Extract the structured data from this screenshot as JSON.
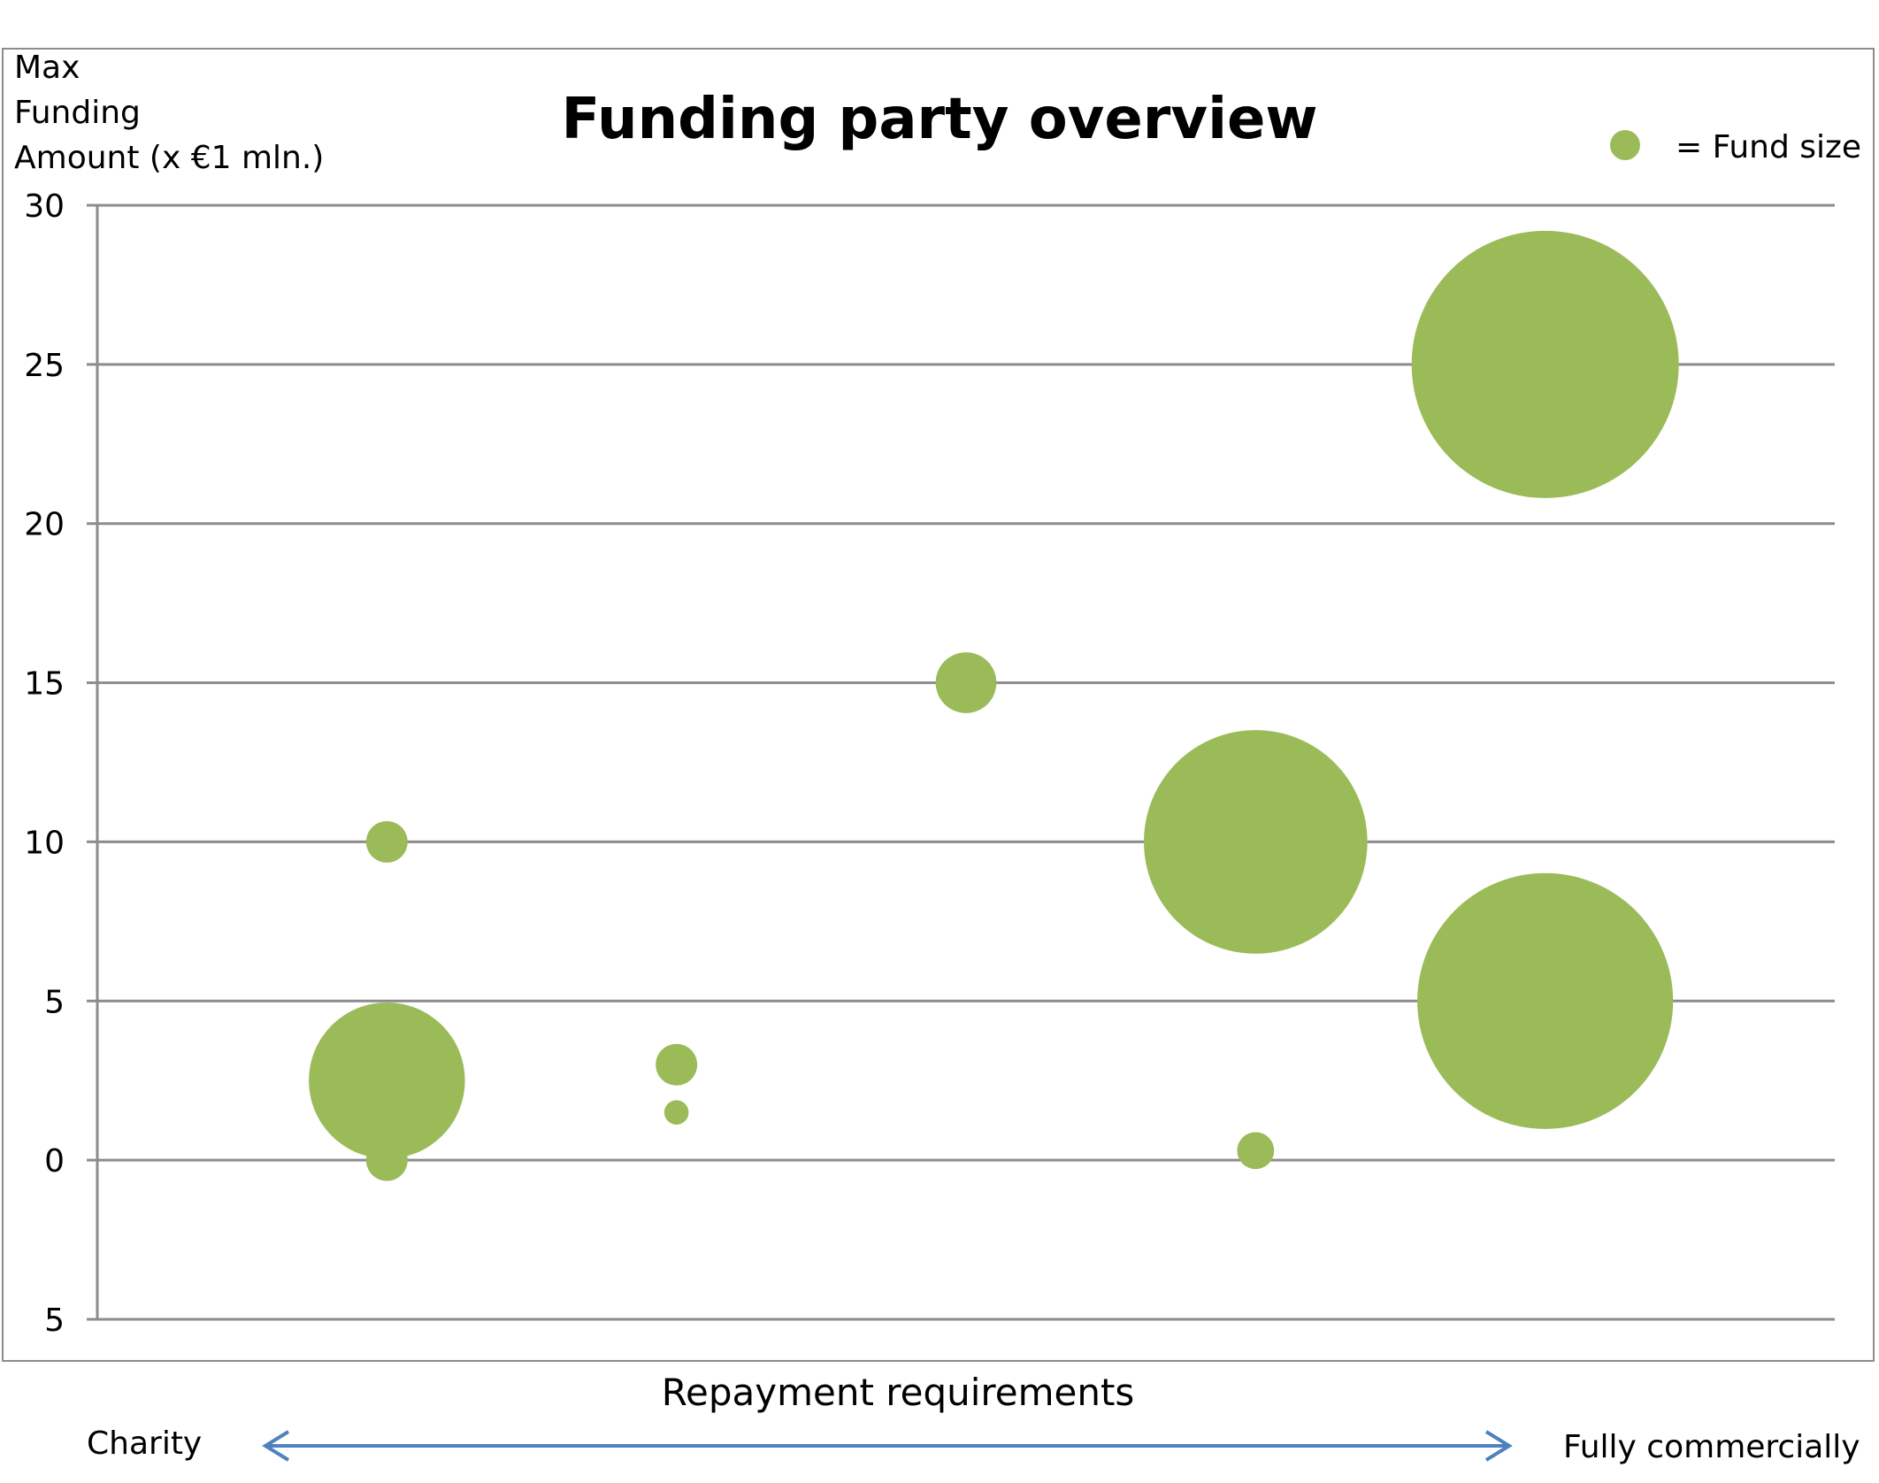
{
  "chart_data": {
    "type": "bubble",
    "title": "Funding party overview",
    "ylabel_lines": [
      "Max",
      "Funding",
      "Amount (x €1 mln.)"
    ],
    "xlabel": "Repayment requirements",
    "ylim": [
      -5,
      30
    ],
    "yticks": [
      30,
      25,
      20,
      15,
      10,
      5,
      0,
      "5"
    ],
    "grid": true,
    "legend": {
      "placement": "top-right",
      "label": "= Fund size",
      "color": "#9bbb59"
    },
    "bubble_color": "#9bbb59",
    "points": [
      {
        "x": 1,
        "y": 10,
        "size": 0.29
      },
      {
        "x": 1,
        "y": 2.5,
        "size": 4.1
      },
      {
        "x": 1,
        "y": 0,
        "size": 0.29
      },
      {
        "x": 2,
        "y": 3,
        "size": 0.29
      },
      {
        "x": 2,
        "y": 1.5,
        "size": 0.1
      },
      {
        "x": 3,
        "y": 15,
        "size": 0.62
      },
      {
        "x": 4,
        "y": 10,
        "size": 8.4
      },
      {
        "x": 4,
        "y": 0.3,
        "size": 0.23
      },
      {
        "x": 5,
        "y": 25,
        "size": 12
      },
      {
        "x": 5,
        "y": 5,
        "size": 11
      }
    ],
    "xlim": [
      0,
      6
    ]
  },
  "scale": {
    "left_label": "Charity",
    "right_label": "Fully commercially",
    "arrow_color": "#4f81bd"
  }
}
